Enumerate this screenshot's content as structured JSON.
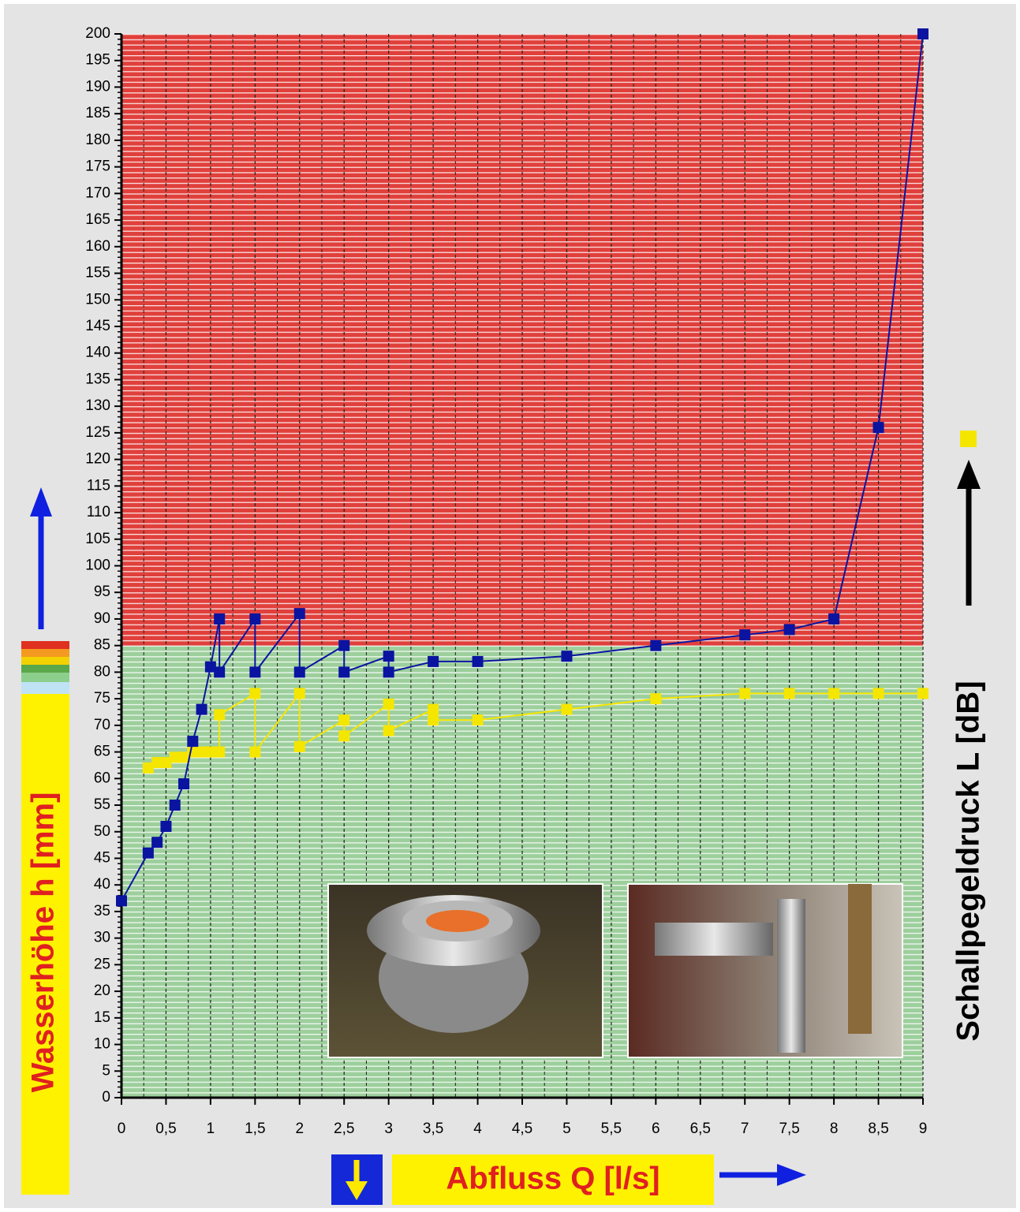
{
  "chart_data": {
    "type": "line",
    "x_label": "Abfluss Q [l/s]",
    "y_label": "Wasserhöhe h [mm]",
    "right_label": "Schallpegeldruck L [dB]",
    "xlim": [
      0,
      9
    ],
    "ylim": [
      0,
      200
    ],
    "xticks": [
      0,
      {
        "value": 0.5,
        "label": "0,5"
      },
      1,
      {
        "value": 1.5,
        "label": "1,5"
      },
      2,
      {
        "value": 2.5,
        "label": "2,5"
      },
      3,
      {
        "value": 3.5,
        "label": "3,5"
      },
      4,
      {
        "value": 4.5,
        "label": "4,5"
      },
      5,
      {
        "value": 5.5,
        "label": "5,5"
      },
      6,
      {
        "value": 6.5,
        "label": "6,5"
      },
      7,
      {
        "value": 7.5,
        "label": "7,5"
      },
      8,
      {
        "value": 8.5,
        "label": "8,5"
      },
      9
    ],
    "yticks": [
      0,
      5,
      10,
      15,
      20,
      25,
      30,
      35,
      40,
      45,
      50,
      55,
      60,
      65,
      70,
      75,
      80,
      85,
      90,
      95,
      100,
      105,
      110,
      115,
      120,
      125,
      130,
      135,
      140,
      145,
      150,
      155,
      160,
      165,
      170,
      175,
      180,
      185,
      190,
      195,
      200
    ],
    "zones": [
      {
        "from": 0,
        "to": 85,
        "color": "#9dcf9d"
      },
      {
        "from": 85,
        "to": 200,
        "color": "#e0403c"
      }
    ],
    "series": [
      {
        "color": "#0a14a0",
        "x": [
          0,
          0.3,
          0.4,
          0.5,
          0.6,
          0.7,
          0.8,
          0.9,
          1.0,
          1.1,
          1.1,
          1.5,
          1.5,
          2,
          2,
          2.5,
          2.5,
          3,
          3,
          3.5,
          4,
          5,
          6,
          7,
          7.5,
          8,
          8.5,
          9
        ],
        "values": [
          37,
          46,
          48,
          51,
          55,
          59,
          67,
          73,
          81,
          90,
          80,
          90,
          80,
          91,
          80,
          85,
          80,
          83,
          80,
          82,
          82,
          83,
          85,
          87,
          88,
          90,
          126,
          200
        ]
      },
      {
        "color": "#f5e600",
        "x": [
          0.3,
          0.4,
          0.5,
          0.6,
          0.7,
          0.8,
          0.9,
          1.0,
          1.1,
          1.1,
          1.5,
          1.5,
          2,
          2,
          2.5,
          2.5,
          3,
          3,
          3.5,
          3.5,
          4,
          5,
          6,
          7,
          7.5,
          8,
          8.5,
          9
        ],
        "values": [
          62,
          63,
          63,
          64,
          64,
          65,
          65,
          65,
          65,
          72,
          76,
          65,
          76,
          66,
          71,
          68,
          74,
          69,
          73,
          71,
          71,
          73,
          75,
          76,
          76,
          76,
          76,
          76
        ]
      }
    ]
  }
}
